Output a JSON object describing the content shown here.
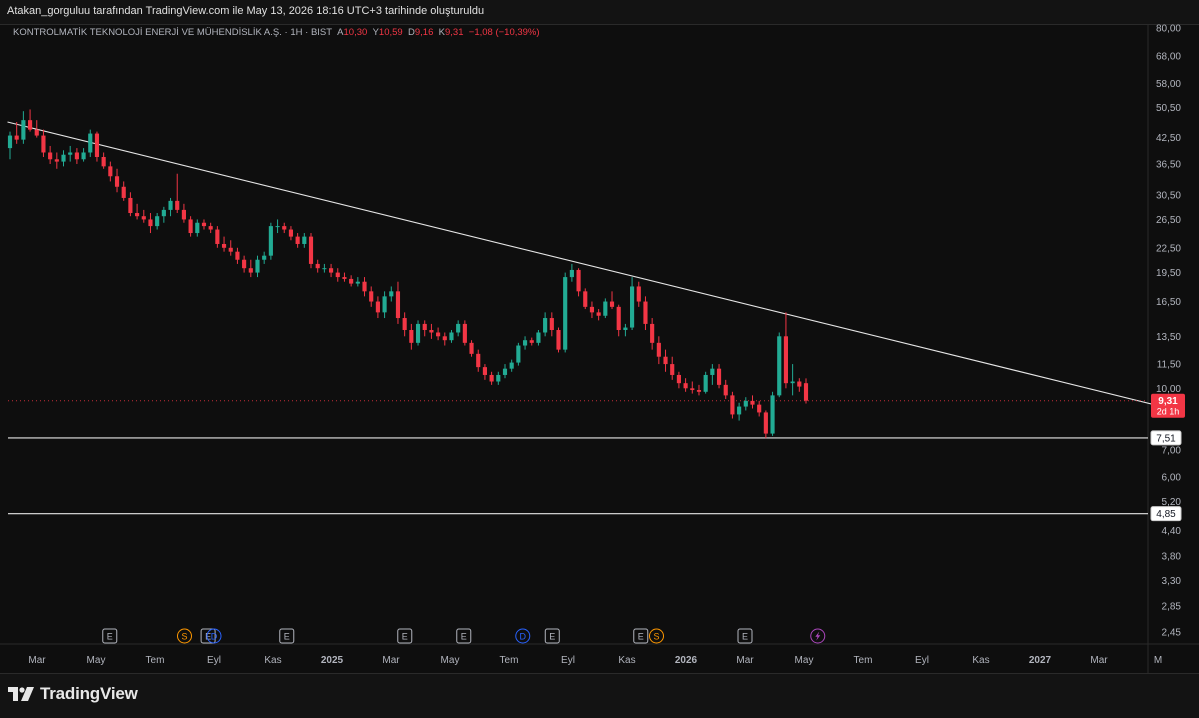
{
  "header": {
    "attribution": "Atakan_gorguluu tarafından TradingView.com ile May 13, 2026 18:16 UTC+3 tarihinde oluşturuldu"
  },
  "symbol": {
    "name": "KONTROLMATİK TEKNOLOJİ ENERJİ VE MÜHENDİSLİK A.Ş.",
    "sep1": "·",
    "interval": "1H",
    "sep2": "·",
    "exchange": "BIST",
    "o_label": "A",
    "o_value": "10,30",
    "h_label": "Y",
    "h_value": "10,59",
    "l_label": "D",
    "l_value": "9,16",
    "c_label": "K",
    "c_value": "9,31",
    "change": "−1,08 (−10,39%)"
  },
  "footer": {
    "brand": "TradingView"
  },
  "colors": {
    "background": "#0e0e0e",
    "up": "#22ab94",
    "down": "#f23645",
    "trendline": "#e6e6e6",
    "axis_text": "#b2b5be",
    "event_event": "#b2b5be",
    "event_split": "#ff9800",
    "event_dividend": "#2962ff",
    "event_lightning": "#ab47bc"
  },
  "chart_data": {
    "type": "candlestick",
    "y_scale": "log",
    "ylim": [
      2.3,
      82
    ],
    "y_ticks": [
      {
        "v": 80,
        "label": "80,00"
      },
      {
        "v": 68,
        "label": "68,00"
      },
      {
        "v": 58,
        "label": "58,00"
      },
      {
        "v": 50.5,
        "label": "50,50"
      },
      {
        "v": 42.5,
        "label": "42,50"
      },
      {
        "v": 36.5,
        "label": "36,50"
      },
      {
        "v": 30.5,
        "label": "30,50"
      },
      {
        "v": 26.5,
        "label": "26,50"
      },
      {
        "v": 22.5,
        "label": "22,50"
      },
      {
        "v": 19.5,
        "label": "19,50"
      },
      {
        "v": 16.5,
        "label": "16,50"
      },
      {
        "v": 13.5,
        "label": "13,50"
      },
      {
        "v": 11.5,
        "label": "11,50"
      },
      {
        "v": 10.0,
        "label": "10,00"
      },
      {
        "v": 7.0,
        "label": "7,00"
      },
      {
        "v": 6.0,
        "label": "6,00"
      },
      {
        "v": 5.2,
        "label": "5,20"
      },
      {
        "v": 4.4,
        "label": "4,40"
      },
      {
        "v": 3.8,
        "label": "3,80"
      },
      {
        "v": 3.3,
        "label": "3,30"
      },
      {
        "v": 2.85,
        "label": "2,85"
      },
      {
        "v": 2.45,
        "label": "2,45"
      }
    ],
    "x_ticks": [
      {
        "x": "2024-03",
        "label": "Mar"
      },
      {
        "x": "2024-05",
        "label": "May"
      },
      {
        "x": "2024-07",
        "label": "Tem"
      },
      {
        "x": "2024-09",
        "label": "Eyl"
      },
      {
        "x": "2024-11",
        "label": "Kas"
      },
      {
        "x": "2025-01",
        "label": "2025"
      },
      {
        "x": "2025-03",
        "label": "Mar"
      },
      {
        "x": "2025-05",
        "label": "May"
      },
      {
        "x": "2025-07",
        "label": "Tem"
      },
      {
        "x": "2025-09",
        "label": "Eyl"
      },
      {
        "x": "2025-11",
        "label": "Kas"
      },
      {
        "x": "2026-01",
        "label": "2026"
      },
      {
        "x": "2026-03",
        "label": "Mar"
      },
      {
        "x": "2026-05",
        "label": "May"
      },
      {
        "x": "2026-07",
        "label": "Tem"
      },
      {
        "x": "2026-09",
        "label": "Eyl"
      },
      {
        "x": "2026-11",
        "label": "Kas"
      },
      {
        "x": "2027-01",
        "label": "2027"
      },
      {
        "x": "2027-03",
        "label": "Mar"
      },
      {
        "x": "2027-05",
        "label": "M"
      }
    ],
    "candles": [
      {
        "o": 40.0,
        "h": 44.0,
        "l": 37.5,
        "c": 43.0
      },
      {
        "o": 43.0,
        "h": 46.5,
        "l": 41.0,
        "c": 42.0
      },
      {
        "o": 42.0,
        "h": 49.5,
        "l": 41.0,
        "c": 47.0
      },
      {
        "o": 47.0,
        "h": 50.0,
        "l": 44.0,
        "c": 44.5
      },
      {
        "o": 44.5,
        "h": 47.0,
        "l": 42.5,
        "c": 43.0
      },
      {
        "o": 43.0,
        "h": 44.5,
        "l": 38.0,
        "c": 39.0
      },
      {
        "o": 39.0,
        "h": 40.5,
        "l": 36.5,
        "c": 37.5
      },
      {
        "o": 37.5,
        "h": 39.0,
        "l": 35.5,
        "c": 37.0
      },
      {
        "o": 37.0,
        "h": 39.5,
        "l": 36.0,
        "c": 38.5
      },
      {
        "o": 38.5,
        "h": 40.5,
        "l": 37.0,
        "c": 39.0
      },
      {
        "o": 39.0,
        "h": 40.0,
        "l": 36.5,
        "c": 37.5
      },
      {
        "o": 37.5,
        "h": 40.0,
        "l": 37.0,
        "c": 39.0
      },
      {
        "o": 39.0,
        "h": 44.5,
        "l": 38.0,
        "c": 43.5
      },
      {
        "o": 43.5,
        "h": 44.0,
        "l": 37.0,
        "c": 38.0
      },
      {
        "o": 38.0,
        "h": 39.0,
        "l": 35.5,
        "c": 36.0
      },
      {
        "o": 36.0,
        "h": 37.0,
        "l": 33.0,
        "c": 34.0
      },
      {
        "o": 34.0,
        "h": 35.5,
        "l": 31.0,
        "c": 32.0
      },
      {
        "o": 32.0,
        "h": 33.0,
        "l": 29.5,
        "c": 30.0
      },
      {
        "o": 30.0,
        "h": 31.0,
        "l": 27.0,
        "c": 27.5
      },
      {
        "o": 27.5,
        "h": 29.0,
        "l": 26.5,
        "c": 27.0
      },
      {
        "o": 27.0,
        "h": 28.0,
        "l": 26.0,
        "c": 26.5
      },
      {
        "o": 26.5,
        "h": 27.5,
        "l": 24.5,
        "c": 25.5
      },
      {
        "o": 25.5,
        "h": 27.5,
        "l": 25.0,
        "c": 27.0
      },
      {
        "o": 27.0,
        "h": 28.5,
        "l": 26.0,
        "c": 28.0
      },
      {
        "o": 28.0,
        "h": 30.0,
        "l": 27.0,
        "c": 29.5
      },
      {
        "o": 29.5,
        "h": 34.5,
        "l": 27.5,
        "c": 28.0
      },
      {
        "o": 28.0,
        "h": 29.0,
        "l": 26.0,
        "c": 26.5
      },
      {
        "o": 26.5,
        "h": 27.0,
        "l": 24.0,
        "c": 24.5
      },
      {
        "o": 24.5,
        "h": 26.5,
        "l": 24.0,
        "c": 26.0
      },
      {
        "o": 26.0,
        "h": 26.5,
        "l": 25.0,
        "c": 25.5
      },
      {
        "o": 25.5,
        "h": 26.0,
        "l": 24.5,
        "c": 25.0
      },
      {
        "o": 25.0,
        "h": 25.5,
        "l": 22.5,
        "c": 23.0
      },
      {
        "o": 23.0,
        "h": 24.0,
        "l": 22.0,
        "c": 22.5
      },
      {
        "o": 22.5,
        "h": 23.5,
        "l": 21.5,
        "c": 22.0
      },
      {
        "o": 22.0,
        "h": 22.5,
        "l": 20.5,
        "c": 21.0
      },
      {
        "o": 21.0,
        "h": 21.5,
        "l": 19.5,
        "c": 20.0
      },
      {
        "o": 20.0,
        "h": 21.0,
        "l": 19.0,
        "c": 19.5
      },
      {
        "o": 19.5,
        "h": 21.5,
        "l": 19.0,
        "c": 21.0
      },
      {
        "o": 21.0,
        "h": 22.0,
        "l": 20.5,
        "c": 21.5
      },
      {
        "o": 21.5,
        "h": 26.0,
        "l": 21.0,
        "c": 25.5
      },
      {
        "o": 25.5,
        "h": 26.5,
        "l": 24.5,
        "c": 25.5
      },
      {
        "o": 25.5,
        "h": 26.0,
        "l": 24.5,
        "c": 25.0
      },
      {
        "o": 25.0,
        "h": 25.5,
        "l": 23.5,
        "c": 24.0
      },
      {
        "o": 24.0,
        "h": 24.5,
        "l": 22.5,
        "c": 23.0
      },
      {
        "o": 23.0,
        "h": 24.5,
        "l": 22.5,
        "c": 24.0
      },
      {
        "o": 24.0,
        "h": 24.5,
        "l": 20.0,
        "c": 20.5
      },
      {
        "o": 20.5,
        "h": 21.0,
        "l": 19.5,
        "c": 20.0
      },
      {
        "o": 20.0,
        "h": 20.5,
        "l": 19.5,
        "c": 20.0
      },
      {
        "o": 20.0,
        "h": 20.5,
        "l": 19.0,
        "c": 19.5
      },
      {
        "o": 19.5,
        "h": 20.0,
        "l": 18.5,
        "c": 19.0
      },
      {
        "o": 19.0,
        "h": 19.5,
        "l": 18.5,
        "c": 18.8
      },
      {
        "o": 18.8,
        "h": 19.2,
        "l": 18.0,
        "c": 18.3
      },
      {
        "o": 18.3,
        "h": 19.0,
        "l": 18.0,
        "c": 18.5
      },
      {
        "o": 18.5,
        "h": 19.0,
        "l": 17.0,
        "c": 17.5
      },
      {
        "o": 17.5,
        "h": 18.0,
        "l": 16.0,
        "c": 16.5
      },
      {
        "o": 16.5,
        "h": 17.0,
        "l": 15.0,
        "c": 15.5
      },
      {
        "o": 15.5,
        "h": 17.5,
        "l": 15.0,
        "c": 17.0
      },
      {
        "o": 17.0,
        "h": 18.0,
        "l": 16.5,
        "c": 17.5
      },
      {
        "o": 17.5,
        "h": 18.5,
        "l": 14.5,
        "c": 15.0
      },
      {
        "o": 15.0,
        "h": 15.5,
        "l": 13.5,
        "c": 14.0
      },
      {
        "o": 14.0,
        "h": 14.5,
        "l": 12.5,
        "c": 13.0
      },
      {
        "o": 13.0,
        "h": 14.8,
        "l": 12.8,
        "c": 14.5
      },
      {
        "o": 14.5,
        "h": 14.8,
        "l": 13.5,
        "c": 14.0
      },
      {
        "o": 14.0,
        "h": 14.5,
        "l": 13.3,
        "c": 13.8
      },
      {
        "o": 13.8,
        "h": 14.2,
        "l": 13.2,
        "c": 13.5
      },
      {
        "o": 13.5,
        "h": 13.8,
        "l": 12.8,
        "c": 13.2
      },
      {
        "o": 13.2,
        "h": 14.0,
        "l": 13.0,
        "c": 13.8
      },
      {
        "o": 13.8,
        "h": 14.8,
        "l": 13.5,
        "c": 14.5
      },
      {
        "o": 14.5,
        "h": 14.8,
        "l": 12.8,
        "c": 13.0
      },
      {
        "o": 13.0,
        "h": 13.2,
        "l": 12.0,
        "c": 12.2
      },
      {
        "o": 12.2,
        "h": 12.5,
        "l": 11.0,
        "c": 11.3
      },
      {
        "o": 11.3,
        "h": 11.5,
        "l": 10.5,
        "c": 10.8
      },
      {
        "o": 10.8,
        "h": 11.0,
        "l": 10.2,
        "c": 10.4
      },
      {
        "o": 10.4,
        "h": 11.0,
        "l": 10.2,
        "c": 10.8
      },
      {
        "o": 10.8,
        "h": 11.5,
        "l": 10.6,
        "c": 11.2
      },
      {
        "o": 11.2,
        "h": 11.8,
        "l": 11.0,
        "c": 11.6
      },
      {
        "o": 11.6,
        "h": 13.0,
        "l": 11.4,
        "c": 12.8
      },
      {
        "o": 12.8,
        "h": 13.5,
        "l": 12.5,
        "c": 13.2
      },
      {
        "o": 13.2,
        "h": 13.4,
        "l": 12.8,
        "c": 13.0
      },
      {
        "o": 13.0,
        "h": 14.0,
        "l": 12.8,
        "c": 13.8
      },
      {
        "o": 13.8,
        "h": 15.5,
        "l": 13.5,
        "c": 15.0
      },
      {
        "o": 15.0,
        "h": 15.5,
        "l": 13.5,
        "c": 14.0
      },
      {
        "o": 14.0,
        "h": 14.2,
        "l": 12.3,
        "c": 12.5
      },
      {
        "o": 12.5,
        "h": 19.5,
        "l": 12.3,
        "c": 19.0
      },
      {
        "o": 19.0,
        "h": 20.5,
        "l": 18.5,
        "c": 19.8
      },
      {
        "o": 19.8,
        "h": 20.0,
        "l": 17.0,
        "c": 17.5
      },
      {
        "o": 17.5,
        "h": 17.8,
        "l": 15.8,
        "c": 16.0
      },
      {
        "o": 16.0,
        "h": 16.5,
        "l": 15.0,
        "c": 15.5
      },
      {
        "o": 15.5,
        "h": 15.8,
        "l": 14.8,
        "c": 15.2
      },
      {
        "o": 15.2,
        "h": 16.8,
        "l": 15.0,
        "c": 16.5
      },
      {
        "o": 16.5,
        "h": 17.5,
        "l": 15.8,
        "c": 16.0
      },
      {
        "o": 16.0,
        "h": 16.2,
        "l": 13.5,
        "c": 14.0
      },
      {
        "o": 14.0,
        "h": 14.5,
        "l": 13.5,
        "c": 14.2
      },
      {
        "o": 14.2,
        "h": 19.0,
        "l": 14.0,
        "c": 18.0
      },
      {
        "o": 18.0,
        "h": 18.5,
        "l": 16.0,
        "c": 16.5
      },
      {
        "o": 16.5,
        "h": 17.0,
        "l": 14.0,
        "c": 14.5
      },
      {
        "o": 14.5,
        "h": 15.0,
        "l": 12.5,
        "c": 13.0
      },
      {
        "o": 13.0,
        "h": 13.5,
        "l": 11.5,
        "c": 12.0
      },
      {
        "o": 12.0,
        "h": 12.5,
        "l": 11.0,
        "c": 11.5
      },
      {
        "o": 11.5,
        "h": 12.0,
        "l": 10.5,
        "c": 10.8
      },
      {
        "o": 10.8,
        "h": 11.0,
        "l": 10.0,
        "c": 10.3
      },
      {
        "o": 10.3,
        "h": 10.6,
        "l": 9.8,
        "c": 10.0
      },
      {
        "o": 10.0,
        "h": 10.4,
        "l": 9.7,
        "c": 9.9
      },
      {
        "o": 9.9,
        "h": 10.2,
        "l": 9.6,
        "c": 9.8
      },
      {
        "o": 9.8,
        "h": 11.0,
        "l": 9.7,
        "c": 10.8
      },
      {
        "o": 10.8,
        "h": 11.5,
        "l": 10.2,
        "c": 11.2
      },
      {
        "o": 11.2,
        "h": 11.5,
        "l": 10.0,
        "c": 10.2
      },
      {
        "o": 10.2,
        "h": 10.5,
        "l": 9.4,
        "c": 9.6
      },
      {
        "o": 9.6,
        "h": 9.8,
        "l": 8.4,
        "c": 8.6
      },
      {
        "o": 8.6,
        "h": 9.2,
        "l": 8.3,
        "c": 9.0
      },
      {
        "o": 9.0,
        "h": 9.5,
        "l": 8.8,
        "c": 9.3
      },
      {
        "o": 9.3,
        "h": 9.6,
        "l": 8.9,
        "c": 9.1
      },
      {
        "o": 9.1,
        "h": 9.3,
        "l": 8.5,
        "c": 8.7
      },
      {
        "o": 8.7,
        "h": 8.8,
        "l": 7.5,
        "c": 7.7
      },
      {
        "o": 7.7,
        "h": 9.8,
        "l": 7.6,
        "c": 9.6
      },
      {
        "o": 9.6,
        "h": 13.8,
        "l": 9.5,
        "c": 13.5
      },
      {
        "o": 13.5,
        "h": 15.5,
        "l": 10.0,
        "c": 10.3
      },
      {
        "o": 10.3,
        "h": 11.5,
        "l": 9.6,
        "c": 10.4
      },
      {
        "o": 10.4,
        "h": 10.6,
        "l": 9.8,
        "c": 10.1
      },
      {
        "o": 10.3,
        "h": 10.59,
        "l": 9.16,
        "c": 9.31
      }
    ],
    "trendline": {
      "from": {
        "x": "2024-02-01",
        "y": 46.5
      },
      "to": {
        "x": "2027-05-08",
        "y": 8.96
      }
    },
    "horizontal_lines": [
      {
        "value": 7.51,
        "label": "7,51"
      },
      {
        "value": 4.85,
        "label": "4,85"
      }
    ],
    "last_price": {
      "value": 9.31,
      "label": "9,31",
      "countdown": "2d 1h"
    },
    "events": [
      {
        "x": "2024-05-15",
        "type": "E"
      },
      {
        "x": "2024-08-01",
        "type": "S"
      },
      {
        "x": "2024-08-25",
        "type": "E"
      },
      {
        "x": "2024-09-01",
        "type": "D"
      },
      {
        "x": "2024-11-15",
        "type": "E"
      },
      {
        "x": "2025-03-15",
        "type": "E"
      },
      {
        "x": "2025-05-15",
        "type": "E"
      },
      {
        "x": "2025-07-15",
        "type": "D"
      },
      {
        "x": "2025-08-15",
        "type": "E"
      },
      {
        "x": "2025-11-15",
        "type": "E"
      },
      {
        "x": "2025-12-01",
        "type": "S"
      },
      {
        "x": "2026-03-01",
        "type": "E"
      },
      {
        "x": "2026-05-15",
        "type": "lightning"
      }
    ]
  }
}
